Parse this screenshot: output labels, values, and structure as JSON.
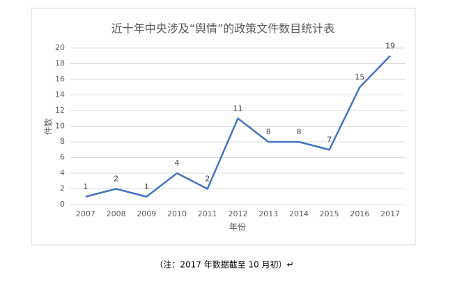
{
  "chart_data": {
    "type": "line",
    "title": "近十年中央涉及“舆情”的政策文件数目统计表",
    "x_label": "年份",
    "y_label": "件数",
    "categories": [
      "2007",
      "2008",
      "2009",
      "2010",
      "2011",
      "2012",
      "2013",
      "2014",
      "2015",
      "2016",
      "2017"
    ],
    "values": [
      1,
      2,
      1,
      4,
      2,
      11,
      8,
      8,
      7,
      15,
      19
    ],
    "color": "#4472c4",
    "ylim": [
      0,
      20
    ],
    "yticks": [
      0,
      2,
      4,
      6,
      8,
      10,
      12,
      14,
      16,
      18,
      20
    ],
    "grid": true
  },
  "caption": "（注：2017 年数据截至 10 月初）↵"
}
